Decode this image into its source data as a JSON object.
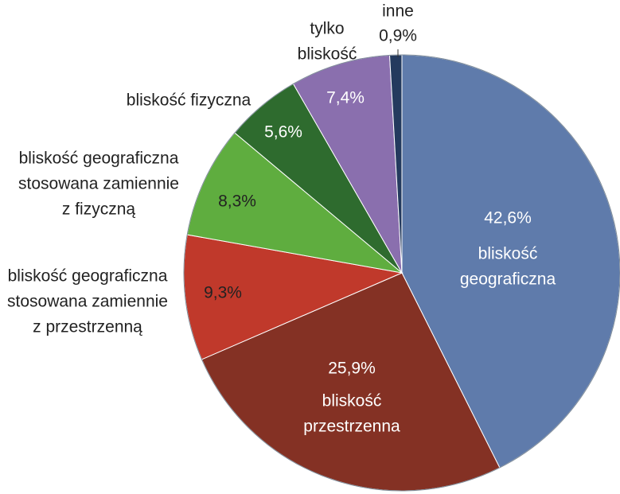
{
  "chart_data": {
    "type": "pie",
    "title": "",
    "unit": "%",
    "start_angle_deg": 0,
    "direction": "clockwise",
    "slices": [
      {
        "value": 42.6,
        "value_label": "42,6%",
        "label_lines": [
          "bliskość",
          "geograficzna"
        ],
        "color": "#5f7bab",
        "label_color": "#ffffff",
        "label_placement": "inside"
      },
      {
        "value": 25.9,
        "value_label": "25,9%",
        "label_lines": [
          "bliskość",
          "przestrzenna"
        ],
        "color": "#843124",
        "label_color": "#ffffff",
        "label_placement": "inside"
      },
      {
        "value": 9.3,
        "value_label": "9,3%",
        "label_lines": [
          "bliskość geograficzna",
          "stosowana zamiennie",
          "z przestrzenną"
        ],
        "color": "#c0392b",
        "label_color": "#222222",
        "label_placement": "outside"
      },
      {
        "value": 8.3,
        "value_label": "8,3%",
        "label_lines": [
          "bliskość geograficzna",
          "stosowana zamiennie",
          "z fizyczną"
        ],
        "color": "#5fad3f",
        "label_color": "#222222",
        "label_placement": "outside"
      },
      {
        "value": 5.6,
        "value_label": "5,6%",
        "label_lines": [
          "bliskość fizyczna"
        ],
        "color": "#2e6b2e",
        "label_color": "#ffffff",
        "label_placement": "outside"
      },
      {
        "value": 7.4,
        "value_label": "7,4%",
        "label_lines": [
          "tylko",
          "bliskość"
        ],
        "color": "#8a6fae",
        "label_color": "#ffffff",
        "label_placement": "outside"
      },
      {
        "value": 0.9,
        "value_label": "0,9%",
        "label_lines": [
          "inne"
        ],
        "color": "#243a5e",
        "label_color": "#222222",
        "label_placement": "outside-top"
      }
    ]
  }
}
